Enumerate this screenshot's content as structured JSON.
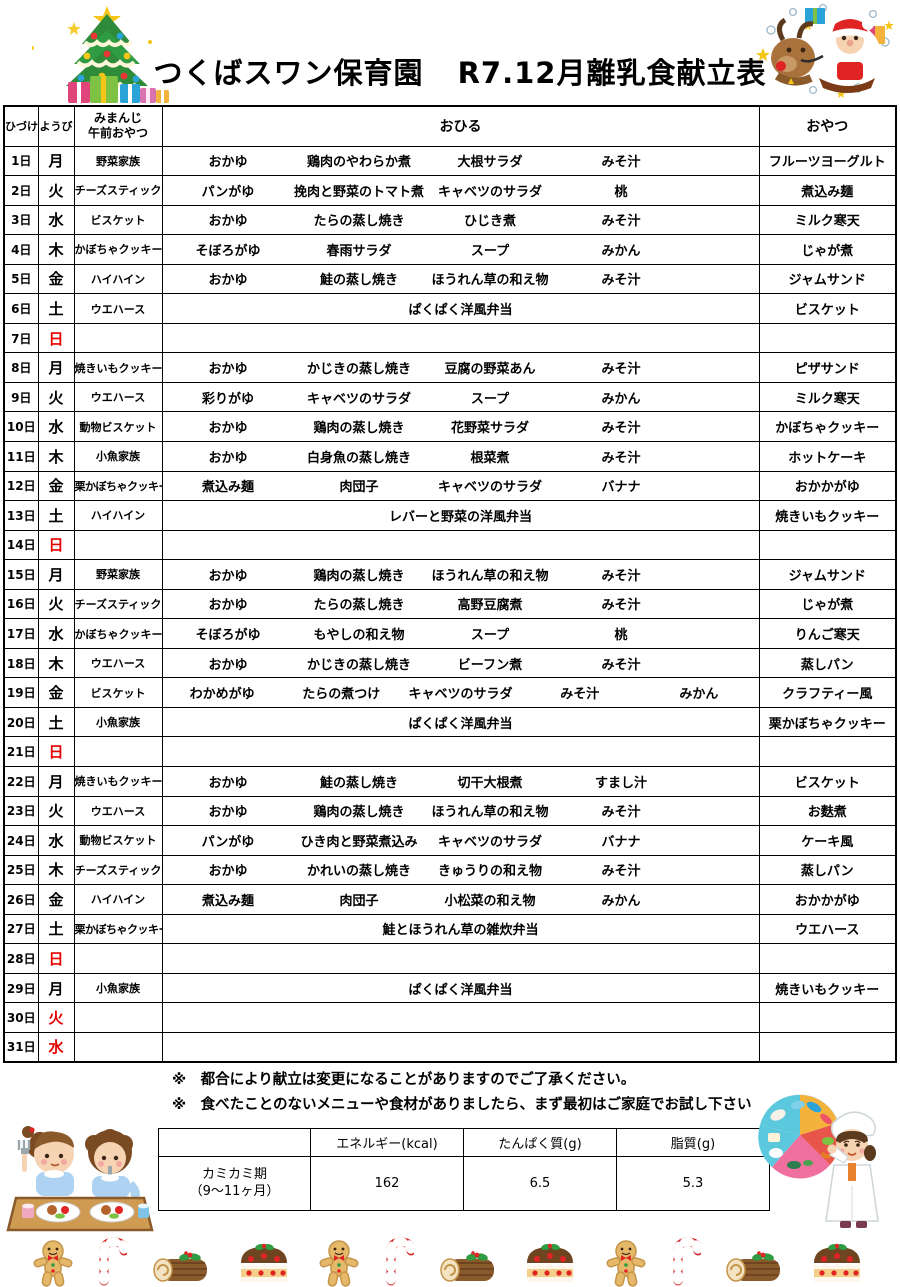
{
  "title": {
    "school": "つくばスワン保育園",
    "doc": "R7.12月離乳食献立表"
  },
  "table": {
    "headers": {
      "date": "ひづけ",
      "day": "ようび",
      "morning_line1": "みまんじ",
      "morning_line2": "午前おやつ",
      "lunch": "おひる",
      "snack": "おやつ"
    },
    "rows": [
      {
        "date": "1日",
        "day": "月",
        "red": false,
        "morning": "野菜家族",
        "lunch": [
          "おかゆ",
          "鶏肉のやわらか煮",
          "大根サラダ",
          "みそ汁"
        ],
        "snack": "フルーツヨーグルト"
      },
      {
        "date": "2日",
        "day": "火",
        "red": false,
        "morning": "チーズスティック",
        "lunch": [
          "パンがゆ",
          "挽肉と野菜のトマト煮",
          "キャベツのサラダ",
          "桃"
        ],
        "snack": "煮込み麺"
      },
      {
        "date": "3日",
        "day": "水",
        "red": false,
        "morning": "ビスケット",
        "lunch": [
          "おかゆ",
          "たらの蒸し焼き",
          "ひじき煮",
          "みそ汁"
        ],
        "snack": "ミルク寒天"
      },
      {
        "date": "4日",
        "day": "木",
        "red": false,
        "morning": "かぼちゃクッキー",
        "lunch": [
          "そぼろがゆ",
          "春雨サラダ",
          "スープ",
          "みかん"
        ],
        "snack": "じゃが煮"
      },
      {
        "date": "5日",
        "day": "金",
        "red": false,
        "morning": "ハイハイン",
        "lunch": [
          "おかゆ",
          "鮭の蒸し焼き",
          "ほうれん草の和え物",
          "みそ汁"
        ],
        "snack": "ジャムサンド"
      },
      {
        "date": "6日",
        "day": "土",
        "red": false,
        "morning": "ウエハース",
        "lunch": [
          "ぱくぱく洋風弁当"
        ],
        "snack": "ビスケット"
      },
      {
        "date": "7日",
        "day": "日",
        "red": true,
        "morning": "",
        "lunch": [],
        "snack": ""
      },
      {
        "date": "8日",
        "day": "月",
        "red": false,
        "morning": "焼きいもクッキー",
        "lunch": [
          "おかゆ",
          "かじきの蒸し焼き",
          "豆腐の野菜あん",
          "みそ汁"
        ],
        "snack": "ピザサンド"
      },
      {
        "date": "9日",
        "day": "火",
        "red": false,
        "morning": "ウエハース",
        "lunch": [
          "彩りがゆ",
          "キャベツのサラダ",
          "スープ",
          "みかん"
        ],
        "snack": "ミルク寒天"
      },
      {
        "date": "10日",
        "day": "水",
        "red": false,
        "morning": "動物ビスケット",
        "lunch": [
          "おかゆ",
          "鶏肉の蒸し焼き",
          "花野菜サラダ",
          "みそ汁"
        ],
        "snack": "かぼちゃクッキー"
      },
      {
        "date": "11日",
        "day": "木",
        "red": false,
        "morning": "小魚家族",
        "lunch": [
          "おかゆ",
          "白身魚の蒸し焼き",
          "根菜煮",
          "みそ汁"
        ],
        "snack": "ホットケーキ"
      },
      {
        "date": "12日",
        "day": "金",
        "red": false,
        "morning": "栗かぼちゃクッキー",
        "lunch": [
          "煮込み麺",
          "肉団子",
          "キャベツのサラダ",
          "バナナ"
        ],
        "snack": "おかかがゆ"
      },
      {
        "date": "13日",
        "day": "土",
        "red": false,
        "morning": "ハイハイン",
        "lunch": [
          "レバーと野菜の洋風弁当"
        ],
        "snack": "焼きいもクッキー"
      },
      {
        "date": "14日",
        "day": "日",
        "red": true,
        "morning": "",
        "lunch": [],
        "snack": ""
      },
      {
        "date": "15日",
        "day": "月",
        "red": false,
        "morning": "野菜家族",
        "lunch": [
          "おかゆ",
          "鶏肉の蒸し焼き",
          "ほうれん草の和え物",
          "みそ汁"
        ],
        "snack": "ジャムサンド"
      },
      {
        "date": "16日",
        "day": "火",
        "red": false,
        "morning": "チーズスティック",
        "lunch": [
          "おかゆ",
          "たらの蒸し焼き",
          "高野豆腐煮",
          "みそ汁"
        ],
        "snack": "じゃが煮"
      },
      {
        "date": "17日",
        "day": "水",
        "red": false,
        "morning": "かぼちゃクッキー",
        "lunch": [
          "そぼろがゆ",
          "もやしの和え物",
          "スープ",
          "桃"
        ],
        "snack": "りんご寒天"
      },
      {
        "date": "18日",
        "day": "木",
        "red": false,
        "morning": "ウエハース",
        "lunch": [
          "おかゆ",
          "かじきの蒸し焼き",
          "ビーフン煮",
          "みそ汁"
        ],
        "snack": "蒸しパン"
      },
      {
        "date": "19日",
        "day": "金",
        "red": false,
        "morning": "ビスケット",
        "lunch": [
          "わかめがゆ",
          "たらの煮つけ",
          "キャベツのサラダ",
          "みそ汁",
          "みかん"
        ],
        "snack": "クラフティー風"
      },
      {
        "date": "20日",
        "day": "土",
        "red": false,
        "morning": "小魚家族",
        "lunch": [
          "ぱくぱく洋風弁当"
        ],
        "snack": "栗かぼちゃクッキー"
      },
      {
        "date": "21日",
        "day": "日",
        "red": true,
        "morning": "",
        "lunch": [],
        "snack": ""
      },
      {
        "date": "22日",
        "day": "月",
        "red": false,
        "morning": "焼きいもクッキー",
        "lunch": [
          "おかゆ",
          "鮭の蒸し焼き",
          "切干大根煮",
          "すまし汁"
        ],
        "snack": "ビスケット"
      },
      {
        "date": "23日",
        "day": "火",
        "red": false,
        "morning": "ウエハース",
        "lunch": [
          "おかゆ",
          "鶏肉の蒸し焼き",
          "ほうれん草の和え物",
          "みそ汁"
        ],
        "snack": "お麩煮"
      },
      {
        "date": "24日",
        "day": "水",
        "red": false,
        "morning": "動物ビスケット",
        "lunch": [
          "パンがゆ",
          "ひき肉と野菜煮込み",
          "キャベツのサラダ",
          "バナナ"
        ],
        "snack": "ケーキ風"
      },
      {
        "date": "25日",
        "day": "木",
        "red": false,
        "morning": "チーズスティック",
        "lunch": [
          "おかゆ",
          "かれいの蒸し焼き",
          "きゅうりの和え物",
          "みそ汁"
        ],
        "snack": "蒸しパン"
      },
      {
        "date": "26日",
        "day": "金",
        "red": false,
        "morning": "ハイハイン",
        "lunch": [
          "煮込み麺",
          "肉団子",
          "小松菜の和え物",
          "みかん"
        ],
        "snack": "おかかがゆ"
      },
      {
        "date": "27日",
        "day": "土",
        "red": false,
        "morning": "栗かぼちゃクッキー",
        "lunch": [
          "鮭とほうれん草の雑炊弁当"
        ],
        "snack": "ウエハース"
      },
      {
        "date": "28日",
        "day": "日",
        "red": true,
        "morning": "",
        "lunch": [],
        "snack": ""
      },
      {
        "date": "29日",
        "day": "月",
        "red": false,
        "morning": "小魚家族",
        "lunch": [
          "ぱくぱく洋風弁当"
        ],
        "snack": "焼きいもクッキー"
      },
      {
        "date": "30日",
        "day": "火",
        "red": true,
        "morning": "",
        "lunch": [],
        "snack": ""
      },
      {
        "date": "31日",
        "day": "水",
        "red": true,
        "morning": "",
        "lunch": [],
        "snack": ""
      }
    ]
  },
  "notes": [
    "※　都合により献立は変更になることがありますのでご了承ください。",
    "※　食べたことのないメニューや食材がありましたら、まず最初はご家庭でお試し下さい"
  ],
  "nutrition": {
    "col_headers": [
      "エネルギー(kcal)",
      "たんぱく質(g)",
      "脂質(g)"
    ],
    "row_label_line1": "カミカミ期",
    "row_label_line2": "（9～11ヶ月）",
    "values": [
      "162",
      "6.5",
      "5.3"
    ]
  },
  "colors": {
    "holiday_red": "#e60000",
    "border_black": "#000000"
  }
}
